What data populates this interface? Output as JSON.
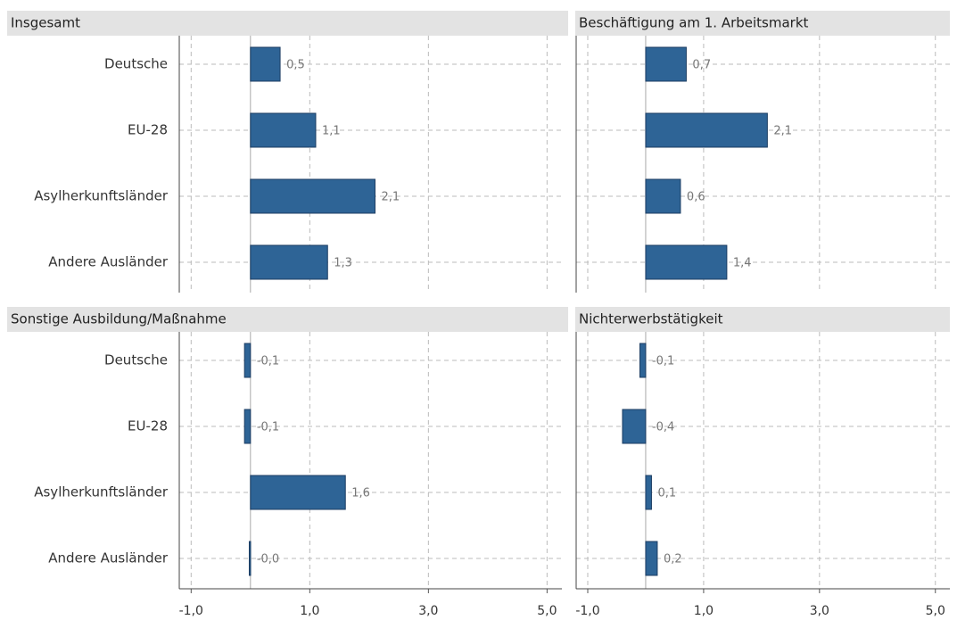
{
  "chart_data": [
    {
      "type": "bar",
      "title": "Insgesamt",
      "categories": [
        "Deutsche",
        "EU-28",
        "Asylherkunftsländer",
        "Andere Ausländer"
      ],
      "values": [
        0.5,
        1.1,
        2.1,
        1.3
      ],
      "value_labels": [
        "0,5",
        "1,1",
        "2,1",
        "1,3"
      ],
      "xlim": [
        -1.2,
        5.25
      ],
      "xticks": [
        -1,
        1,
        3,
        5
      ],
      "color": "#2e6496",
      "grid": true
    },
    {
      "type": "bar",
      "title": "Beschäftigung am 1. Arbeitsmarkt",
      "values": [
        0.7,
        2.1,
        0.6,
        1.4
      ],
      "value_labels": [
        "0,7",
        "2,1",
        "0,6",
        "1,4"
      ],
      "xlim": [
        -1.2,
        5.25
      ],
      "xticks": [
        -1,
        1,
        3,
        5
      ],
      "color": "#2e6496",
      "grid": true
    },
    {
      "type": "bar",
      "title": "Sonstige Ausbildung/Maßnahme",
      "categories": [
        "Deutsche",
        "EU-28",
        "Asylherkunftsländer",
        "Andere Ausländer"
      ],
      "values": [
        -0.1,
        -0.1,
        1.6,
        -0.02
      ],
      "value_labels": [
        "-0,1",
        "-0,1",
        "1,6",
        "-0,0"
      ],
      "xlim": [
        -1.2,
        5.25
      ],
      "xticks": [
        {
          "value": -1,
          "label": "-1,0"
        },
        {
          "value": 1,
          "label": "1,0"
        },
        {
          "value": 3,
          "label": "3,0"
        },
        {
          "value": 5,
          "label": "5,0"
        }
      ],
      "color": "#2e6496",
      "grid": true
    },
    {
      "type": "bar",
      "title": "Nichterwerbstätigkeit",
      "values": [
        -0.1,
        -0.4,
        0.1,
        0.2
      ],
      "value_labels": [
        "-0,1",
        "-0,4",
        "0,1",
        "0,2"
      ],
      "xlim": [
        -1.2,
        5.25
      ],
      "xticks": [
        {
          "value": -1,
          "label": "-1,0"
        },
        {
          "value": 1,
          "label": "1,0"
        },
        {
          "value": 3,
          "label": "3,0"
        },
        {
          "value": 5,
          "label": "5,0"
        }
      ],
      "color": "#2e6496",
      "grid": true
    }
  ]
}
